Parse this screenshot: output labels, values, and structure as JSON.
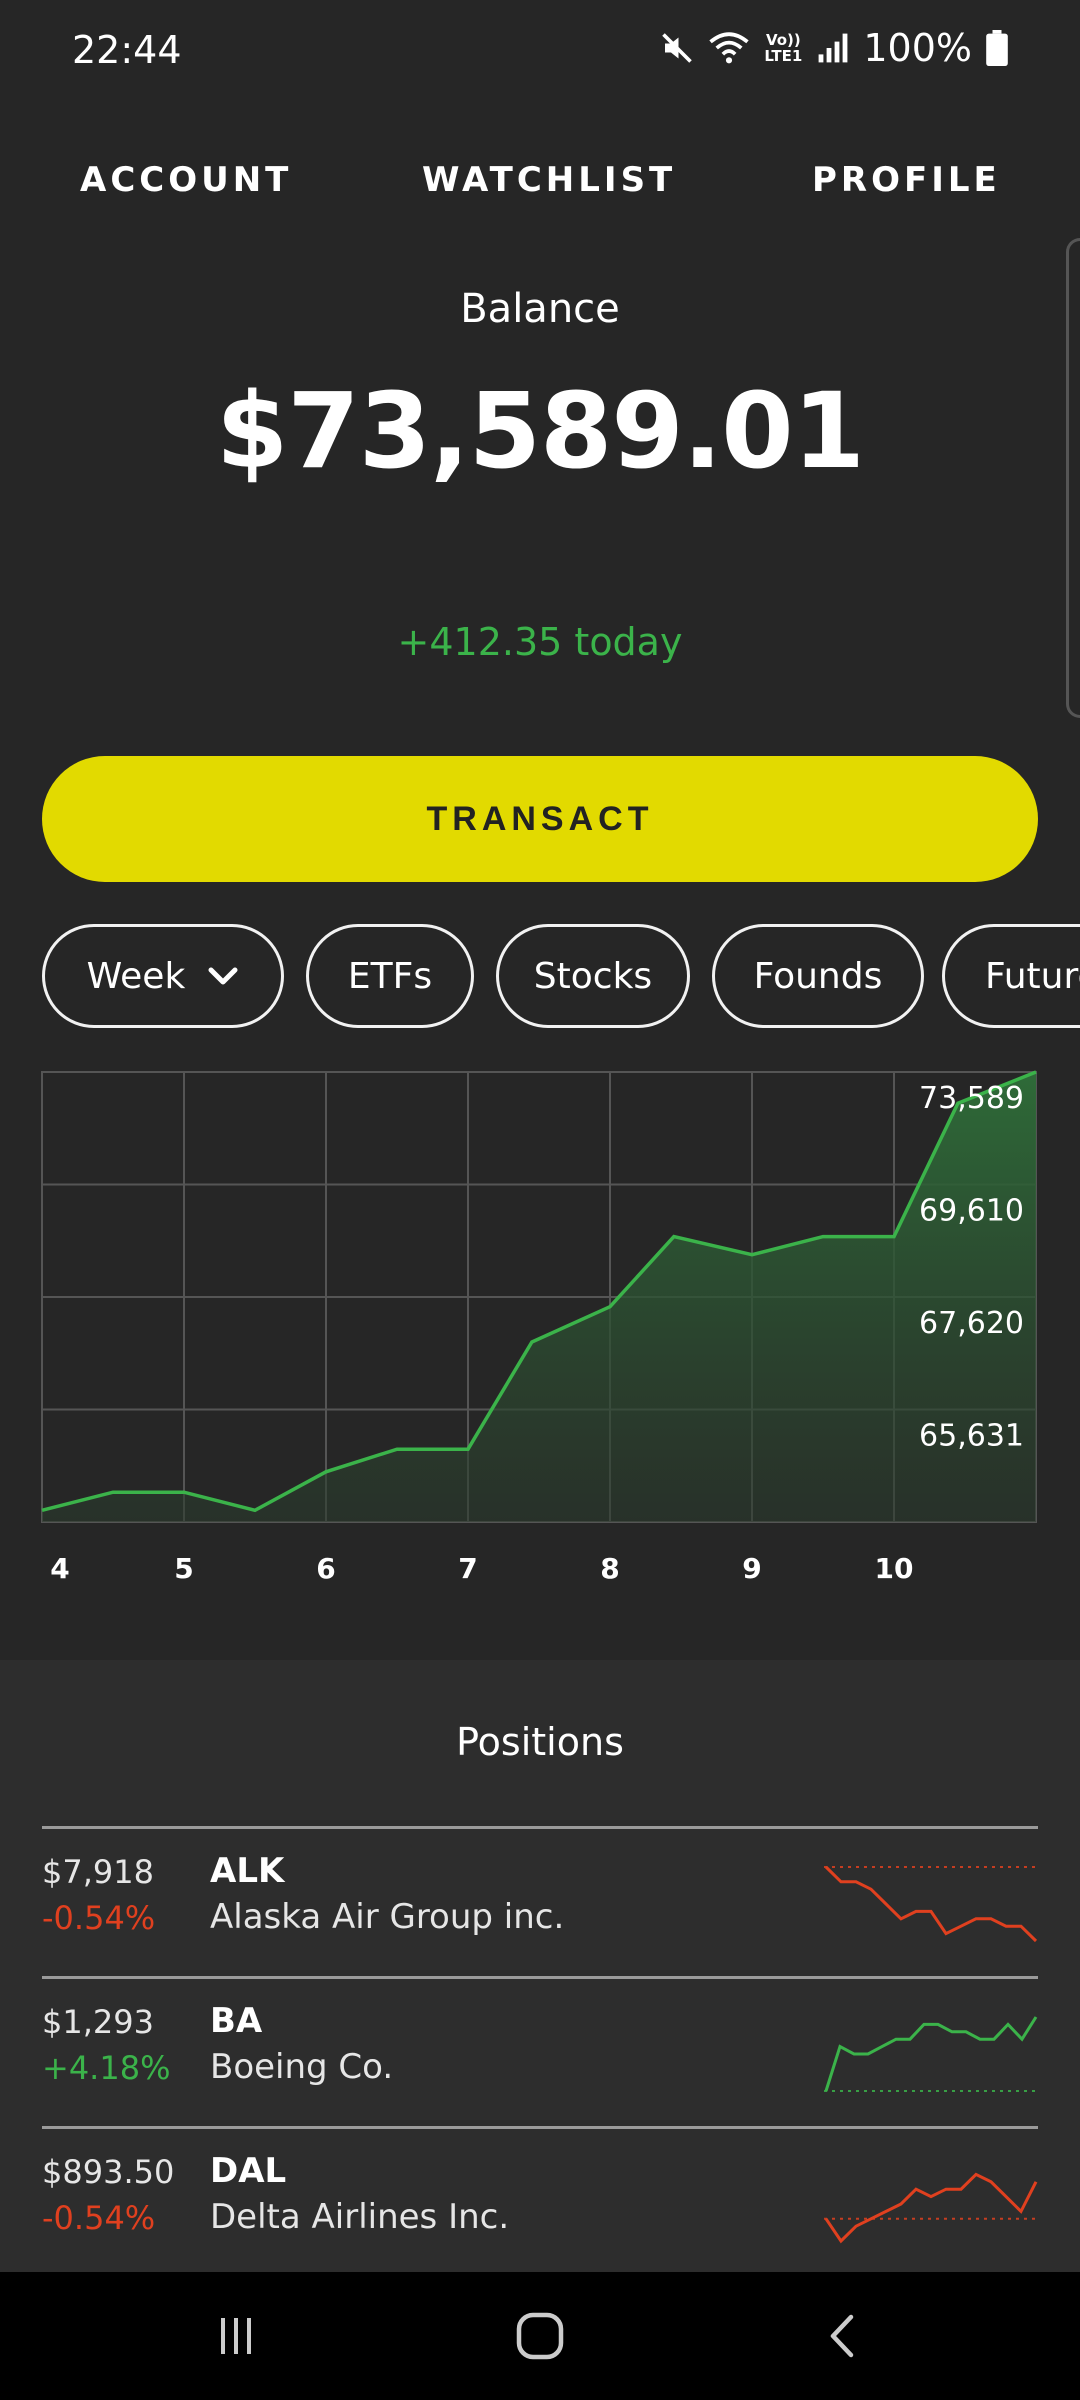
{
  "status": {
    "time": "22:44",
    "battery": "100%",
    "icons": [
      "mute-icon",
      "wifi-icon",
      "volte-icon",
      "signal-icon",
      "battery-icon"
    ],
    "volte_label": "Vo)) LTE1"
  },
  "nav": {
    "account": "ACCOUNT",
    "watchlist": "WATCHLIST",
    "profile": "PROFILE"
  },
  "balance": {
    "label": "Balance",
    "value": "$73,589.01",
    "change_today": "+412.35 today"
  },
  "transact_label": "TRANSACT",
  "filters": {
    "week": "Week",
    "etfs": "ETFs",
    "stocks": "Stocks",
    "founds": "Founds",
    "futures": "Futures"
  },
  "colors": {
    "accent": "#e2da00",
    "up": "#3bb34a",
    "down": "#e0401f",
    "background": "#262626"
  },
  "chart_data": {
    "type": "area",
    "x_tick_labels": [
      "4",
      "5",
      "6",
      "7",
      "8",
      "9",
      "10"
    ],
    "y_tick_labels": [
      "73,589",
      "69,610",
      "67,620",
      "65,631"
    ],
    "y_tick_values": [
      73589,
      69610,
      67620,
      65631
    ],
    "ylim": [
      63641,
      73589
    ],
    "xlim": [
      4,
      11
    ],
    "grid": true,
    "series": [
      {
        "x": [
          4.0,
          4.5,
          5.0,
          5.5,
          6.0,
          6.5,
          7.0,
          7.45,
          8.0,
          8.45,
          9.0,
          9.5,
          10.0,
          10.45,
          11.0
        ],
        "values": [
          63900,
          64300,
          64300,
          63900,
          64750,
          65250,
          65250,
          67620,
          68400,
          69950,
          69550,
          69950,
          69950,
          72900,
          73589
        ]
      }
    ]
  },
  "positions": {
    "title": "Positions",
    "items": [
      {
        "value": "$7,918",
        "change": "-0.54%",
        "direction": "down",
        "ticker": "ALK",
        "name": "Alaska Air Group inc.",
        "spark": [
          10,
          8,
          8,
          7,
          5,
          3,
          4,
          4,
          1,
          2,
          3,
          3,
          2,
          2,
          0
        ],
        "spark_baseline": 10
      },
      {
        "value": "$1,293",
        "change": "+4.18%",
        "direction": "up",
        "ticker": "BA",
        "name": "Boeing Co.",
        "spark": [
          0,
          6,
          5,
          5,
          6,
          7,
          7,
          9,
          9,
          8,
          8,
          7,
          7,
          9,
          7,
          10
        ],
        "spark_baseline": 0
      },
      {
        "value": "$893.50",
        "change": "-0.54%",
        "direction": "down",
        "ticker": "DAL",
        "name": "Delta Airlines Inc.",
        "spark": [
          3,
          0,
          2,
          3,
          4,
          5,
          7,
          6,
          7,
          7,
          9,
          8,
          6,
          4,
          8
        ],
        "spark_baseline": 3
      }
    ]
  }
}
